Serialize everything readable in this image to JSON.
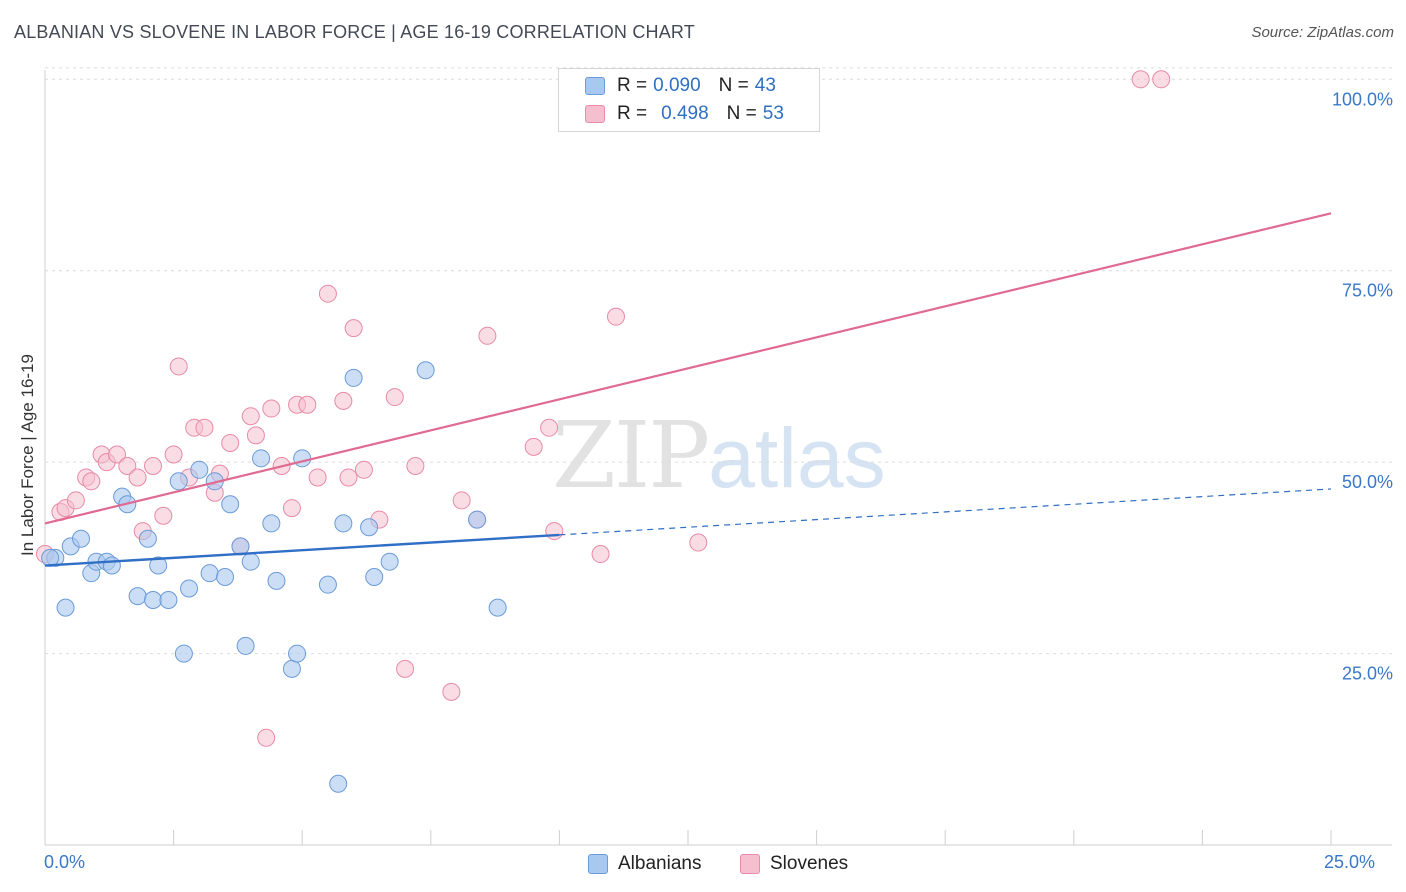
{
  "title": "ALBANIAN VS SLOVENE IN LABOR FORCE | AGE 16-19 CORRELATION CHART",
  "source": "Source: ZipAtlas.com",
  "watermark": {
    "zip": "ZIP",
    "atlas": "atlas"
  },
  "legend": {
    "rows": [
      {
        "r_label": "R =",
        "r_value": "0.090",
        "n_label": "N =",
        "n_value": "43"
      },
      {
        "r_label": "R =",
        "r_value": "0.498",
        "n_label": "N =",
        "n_value": "53"
      }
    ]
  },
  "bottom_legend": {
    "albanians": "Albanians",
    "slovenes": "Slovenes"
  },
  "colors": {
    "albanian_fill": "#a9c8ef",
    "albanian_stroke": "#6b9bd8",
    "albanian_line": "#2f6fc6",
    "slovene_fill": "#f6bfd0",
    "slovene_stroke": "#e88aa8",
    "slovene_line": "#e06a92",
    "grid": "#dcdcdc",
    "tick_text": "#3a78c8"
  },
  "chart_data": {
    "type": "scatter",
    "title": "ALBANIAN VS SLOVENE IN LABOR FORCE | AGE 16-19 CORRELATION CHART",
    "xlabel": "",
    "ylabel": "In Labor Force | Age 16-19",
    "xlim": [
      0,
      25
    ],
    "ylim": [
      0,
      102
    ],
    "x_tick_labels": [
      "0.0%",
      "25.0%"
    ],
    "y_ticks": [
      25,
      50,
      75,
      100
    ],
    "y_tick_labels": [
      "25.0%",
      "50.0%",
      "75.0%",
      "100.0%"
    ],
    "grid": true,
    "legend_placement": "top-center",
    "series": [
      {
        "name": "Albanians",
        "R": 0.09,
        "N": 43,
        "trend": {
          "x0": 0,
          "y0": 36.5,
          "x1": 10,
          "y1": 40.5,
          "dashed_to": 25,
          "dashed_y": 46.5
        },
        "points": [
          [
            0.2,
            37.5
          ],
          [
            0.4,
            31
          ],
          [
            0.5,
            39
          ],
          [
            0.7,
            40
          ],
          [
            0.9,
            35.5
          ],
          [
            1.0,
            37
          ],
          [
            1.2,
            37
          ],
          [
            1.3,
            36.5
          ],
          [
            1.5,
            45.5
          ],
          [
            1.6,
            44.5
          ],
          [
            1.8,
            32.5
          ],
          [
            2.0,
            40
          ],
          [
            2.1,
            32
          ],
          [
            2.2,
            36.5
          ],
          [
            2.4,
            32
          ],
          [
            2.6,
            47.5
          ],
          [
            2.7,
            25
          ],
          [
            2.8,
            33.5
          ],
          [
            3.0,
            49
          ],
          [
            3.2,
            35.5
          ],
          [
            3.3,
            47.5
          ],
          [
            3.5,
            35
          ],
          [
            3.6,
            44.5
          ],
          [
            3.8,
            39
          ],
          [
            3.9,
            26
          ],
          [
            4.0,
            37
          ],
          [
            4.2,
            50.5
          ],
          [
            4.4,
            42
          ],
          [
            4.5,
            34.5
          ],
          [
            4.8,
            23
          ],
          [
            4.9,
            25
          ],
          [
            5.0,
            50.5
          ],
          [
            5.5,
            34
          ],
          [
            5.7,
            8
          ],
          [
            5.8,
            42
          ],
          [
            6.0,
            61
          ],
          [
            6.3,
            41.5
          ],
          [
            6.4,
            35
          ],
          [
            6.7,
            37
          ],
          [
            7.4,
            62
          ],
          [
            8.4,
            42.5
          ],
          [
            8.8,
            31
          ],
          [
            0.1,
            37.5
          ]
        ]
      },
      {
        "name": "Slovenes",
        "R": 0.498,
        "N": 53,
        "trend": {
          "x0": 0,
          "y0": 42,
          "x1": 25,
          "y1": 82.5
        },
        "points": [
          [
            0.0,
            38
          ],
          [
            0.3,
            43.5
          ],
          [
            0.4,
            44
          ],
          [
            0.6,
            45
          ],
          [
            0.8,
            48
          ],
          [
            0.9,
            47.5
          ],
          [
            1.1,
            51
          ],
          [
            1.2,
            50
          ],
          [
            1.4,
            51
          ],
          [
            1.6,
            49.5
          ],
          [
            1.8,
            48
          ],
          [
            1.9,
            41
          ],
          [
            2.1,
            49.5
          ],
          [
            2.3,
            43
          ],
          [
            2.5,
            51
          ],
          [
            2.6,
            62.5
          ],
          [
            2.8,
            48
          ],
          [
            2.9,
            54.5
          ],
          [
            3.1,
            54.5
          ],
          [
            3.3,
            46
          ],
          [
            3.4,
            48.5
          ],
          [
            3.6,
            52.5
          ],
          [
            3.8,
            39
          ],
          [
            4.0,
            56
          ],
          [
            4.1,
            53.5
          ],
          [
            4.3,
            14
          ],
          [
            4.4,
            57
          ],
          [
            4.6,
            49.5
          ],
          [
            4.8,
            44
          ],
          [
            4.9,
            57.5
          ],
          [
            5.1,
            57.5
          ],
          [
            5.3,
            48
          ],
          [
            5.5,
            72
          ],
          [
            5.8,
            58
          ],
          [
            5.9,
            48
          ],
          [
            6.0,
            67.5
          ],
          [
            6.2,
            49
          ],
          [
            6.5,
            42.5
          ],
          [
            6.8,
            58.5
          ],
          [
            7.0,
            23
          ],
          [
            7.2,
            49.5
          ],
          [
            7.9,
            20
          ],
          [
            8.1,
            45
          ],
          [
            8.4,
            42.5
          ],
          [
            8.6,
            66.5
          ],
          [
            9.5,
            52
          ],
          [
            9.8,
            54.5
          ],
          [
            9.9,
            41
          ],
          [
            10.8,
            38
          ],
          [
            11.1,
            69
          ],
          [
            12.7,
            39.5
          ],
          [
            21.3,
            100
          ],
          [
            21.7,
            100
          ]
        ]
      }
    ]
  }
}
